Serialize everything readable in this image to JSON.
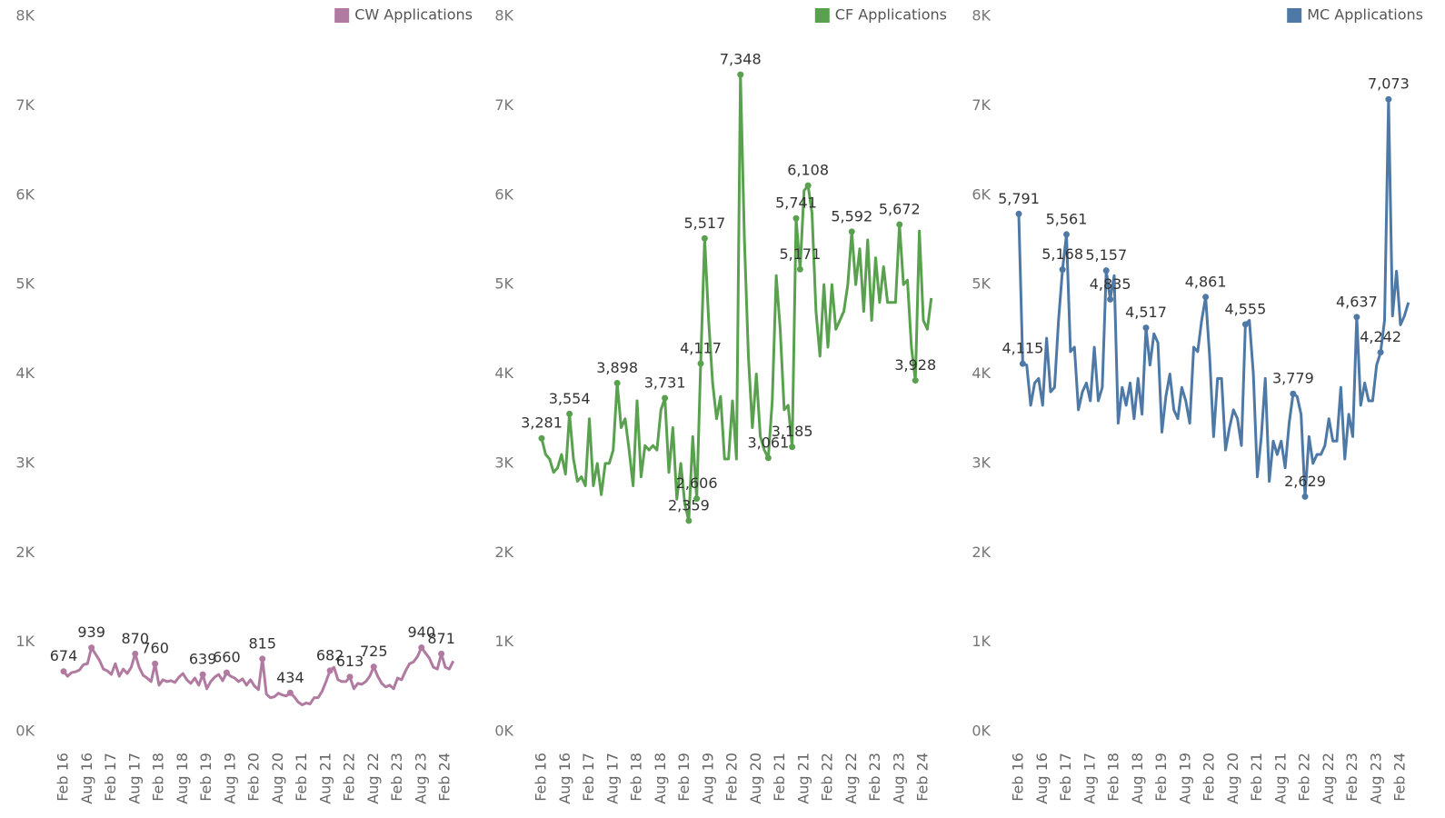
{
  "chart_data": [
    {
      "type": "line",
      "categories": [
        "Feb 16",
        null,
        null,
        null,
        null,
        null,
        "Aug 16",
        null,
        null,
        null,
        null,
        null,
        "Feb 17",
        null,
        null,
        null,
        null,
        null,
        "Aug 17",
        null,
        null,
        null,
        null,
        null,
        "Feb 18",
        null,
        null,
        null,
        null,
        null,
        "Aug 18",
        null,
        null,
        null,
        null,
        null,
        "Feb 19",
        null,
        null,
        null,
        null,
        null,
        "Aug 19",
        null,
        null,
        null,
        null,
        null,
        "Feb 20",
        null,
        null,
        null,
        null,
        null,
        "Aug 20",
        null,
        null,
        null,
        null,
        null,
        "Feb 21",
        null,
        null,
        null,
        null,
        null,
        "Aug 21",
        null,
        null,
        null,
        null,
        null,
        "Feb 22",
        null,
        null,
        null,
        null,
        null,
        "Aug 22",
        null,
        null,
        null,
        null,
        null,
        "Feb 23",
        null,
        null,
        null,
        null,
        null,
        "Aug 23",
        null,
        null,
        null,
        null,
        null,
        "Feb 24",
        null,
        null
      ],
      "series": [
        {
          "name": "CW Applications",
          "color": "#b07aa1",
          "values": [
            674,
            620,
            660,
            670,
            690,
            750,
            760,
            939,
            870,
            800,
            700,
            680,
            640,
            760,
            620,
            700,
            650,
            720,
            870,
            720,
            630,
            600,
            560,
            760,
            520,
            580,
            560,
            570,
            550,
            610,
            650,
            580,
            540,
            600,
            520,
            639,
            480,
            560,
            610,
            640,
            570,
            660,
            620,
            600,
            560,
            590,
            520,
            580,
            510,
            470,
            815,
            420,
            380,
            390,
            430,
            410,
            400,
            434,
            390,
            330,
            300,
            320,
            310,
            380,
            380,
            450,
            560,
            682,
            720,
            580,
            560,
            560,
            613,
            480,
            540,
            530,
            560,
            620,
            725,
            620,
            540,
            500,
            520,
            480,
            600,
            580,
            680,
            760,
            780,
            840,
            940,
            880,
            820,
            720,
            700,
            871,
            720,
            700,
            790
          ],
          "value_labels": [
            "674",
            null,
            null,
            null,
            null,
            null,
            null,
            "939",
            null,
            null,
            null,
            null,
            null,
            null,
            null,
            null,
            null,
            null,
            "870",
            null,
            null,
            null,
            null,
            "760",
            null,
            null,
            null,
            null,
            null,
            null,
            null,
            null,
            null,
            null,
            null,
            "639",
            null,
            null,
            null,
            null,
            null,
            "660",
            null,
            null,
            null,
            null,
            null,
            null,
            null,
            null,
            "815",
            null,
            null,
            null,
            null,
            null,
            null,
            "434",
            null,
            null,
            null,
            null,
            null,
            null,
            null,
            null,
            null,
            "682",
            null,
            null,
            null,
            null,
            "613",
            null,
            null,
            null,
            null,
            null,
            "725",
            null,
            null,
            null,
            null,
            null,
            null,
            null,
            null,
            null,
            null,
            null,
            "940",
            null,
            null,
            null,
            null,
            "871",
            null,
            null,
            null
          ]
        }
      ],
      "ylim": [
        0,
        8000
      ],
      "yticks": [
        {
          "value": 0,
          "label": "0K"
        },
        {
          "value": 1000,
          "label": "1K"
        },
        {
          "value": 2000,
          "label": "2K"
        },
        {
          "value": 3000,
          "label": "3K"
        },
        {
          "value": 4000,
          "label": "4K"
        },
        {
          "value": 5000,
          "label": "5K"
        },
        {
          "value": 6000,
          "label": "6K"
        },
        {
          "value": 7000,
          "label": "7K"
        },
        {
          "value": 8000,
          "label": "8K"
        }
      ],
      "legend": "top-right"
    },
    {
      "type": "line",
      "categories": [
        "Feb 16",
        null,
        null,
        null,
        null,
        null,
        "Aug 16",
        null,
        null,
        null,
        null,
        null,
        "Feb 17",
        null,
        null,
        null,
        null,
        null,
        "Aug 17",
        null,
        null,
        null,
        null,
        null,
        "Feb 18",
        null,
        null,
        null,
        null,
        null,
        "Aug 18",
        null,
        null,
        null,
        null,
        null,
        "Feb 19",
        null,
        null,
        null,
        null,
        null,
        "Aug 19",
        null,
        null,
        null,
        null,
        null,
        "Feb 20",
        null,
        null,
        null,
        null,
        null,
        "Aug 20",
        null,
        null,
        null,
        null,
        null,
        "Feb 21",
        null,
        null,
        null,
        null,
        null,
        "Aug 21",
        null,
        null,
        null,
        null,
        null,
        "Feb 22",
        null,
        null,
        null,
        null,
        null,
        "Aug 22",
        null,
        null,
        null,
        null,
        null,
        "Feb 23",
        null,
        null,
        null,
        null,
        null,
        "Aug 23",
        null,
        null,
        null,
        null,
        null,
        "Feb 24",
        null,
        null
      ],
      "series": [
        {
          "name": "CF Applications",
          "color": "#59a14f",
          "values": [
            3281,
            3100,
            3050,
            2900,
            2950,
            3100,
            2880,
            3554,
            3050,
            2800,
            2850,
            2750,
            3500,
            2750,
            3000,
            2650,
            3000,
            3000,
            3150,
            3898,
            3400,
            3500,
            3150,
            2750,
            3700,
            2850,
            3200,
            3150,
            3200,
            3150,
            3600,
            3731,
            2900,
            3400,
            2600,
            3000,
            2550,
            2359,
            3300,
            2606,
            4117,
            5517,
            4600,
            3900,
            3500,
            3750,
            3050,
            3050,
            3700,
            3050,
            7348,
            5500,
            4200,
            3400,
            4000,
            3300,
            3150,
            3061,
            3700,
            5100,
            4500,
            3600,
            3650,
            3185,
            5741,
            5171,
            6050,
            6108,
            5800,
            4700,
            4200,
            5000,
            4300,
            5000,
            4500,
            4600,
            4700,
            5000,
            5592,
            5000,
            5400,
            4700,
            5500,
            4600,
            5300,
            4800,
            5200,
            4800,
            4800,
            4800,
            5672,
            5000,
            5050,
            4300,
            3928,
            5600,
            4600,
            4500,
            4850
          ],
          "value_labels": [
            "3,281",
            null,
            null,
            null,
            null,
            null,
            null,
            "3,554",
            null,
            null,
            null,
            null,
            null,
            null,
            null,
            null,
            null,
            null,
            null,
            "3,898",
            null,
            null,
            null,
            null,
            null,
            null,
            null,
            null,
            null,
            null,
            null,
            "3,731",
            null,
            null,
            null,
            null,
            null,
            "2,359",
            null,
            "2,606",
            "4,117",
            "5,517",
            null,
            null,
            null,
            null,
            null,
            null,
            null,
            null,
            "7,348",
            null,
            null,
            null,
            null,
            null,
            null,
            "3,061",
            null,
            null,
            null,
            null,
            null,
            "3,185",
            "5,741",
            "5,171",
            null,
            "6,108",
            null,
            null,
            null,
            null,
            null,
            null,
            null,
            null,
            null,
            null,
            "5,592",
            null,
            null,
            null,
            null,
            null,
            null,
            null,
            null,
            null,
            null,
            null,
            "5,672",
            null,
            null,
            null,
            "3,928",
            null,
            null,
            null,
            null
          ]
        }
      ],
      "ylim": [
        0,
        8000
      ],
      "yticks": [
        {
          "value": 0,
          "label": "0K"
        },
        {
          "value": 1000,
          "label": "1K"
        },
        {
          "value": 2000,
          "label": "2K"
        },
        {
          "value": 3000,
          "label": "3K"
        },
        {
          "value": 4000,
          "label": "4K"
        },
        {
          "value": 5000,
          "label": "5K"
        },
        {
          "value": 6000,
          "label": "6K"
        },
        {
          "value": 7000,
          "label": "7K"
        },
        {
          "value": 8000,
          "label": "8K"
        }
      ],
      "legend": "top-right"
    },
    {
      "type": "line",
      "categories": [
        "Feb 16",
        null,
        null,
        null,
        null,
        null,
        "Aug 16",
        null,
        null,
        null,
        null,
        null,
        "Feb 17",
        null,
        null,
        null,
        null,
        null,
        "Aug 17",
        null,
        null,
        null,
        null,
        null,
        "Feb 18",
        null,
        null,
        null,
        null,
        null,
        "Aug 18",
        null,
        null,
        null,
        null,
        null,
        "Feb 19",
        null,
        null,
        null,
        null,
        null,
        "Aug 19",
        null,
        null,
        null,
        null,
        null,
        "Feb 20",
        null,
        null,
        null,
        null,
        null,
        "Aug 20",
        null,
        null,
        null,
        null,
        null,
        "Feb 21",
        null,
        null,
        null,
        null,
        null,
        "Aug 21",
        null,
        null,
        null,
        null,
        null,
        "Feb 22",
        null,
        null,
        null,
        null,
        null,
        "Aug 22",
        null,
        null,
        null,
        null,
        null,
        "Feb 23",
        null,
        null,
        null,
        null,
        null,
        "Aug 23",
        null,
        null,
        null,
        null,
        null,
        "Feb 24",
        null,
        null
      ],
      "series": [
        {
          "name": "MC Applications",
          "color": "#4e79a7",
          "values": [
            5791,
            4115,
            4100,
            3650,
            3900,
            3950,
            3650,
            4400,
            3800,
            3850,
            4600,
            5168,
            5561,
            4250,
            4300,
            3600,
            3800,
            3900,
            3700,
            4300,
            3700,
            3850,
            5157,
            4835,
            5100,
            3450,
            3850,
            3650,
            3900,
            3500,
            3950,
            3550,
            4517,
            4100,
            4450,
            4350,
            3350,
            3750,
            4000,
            3600,
            3500,
            3850,
            3700,
            3450,
            4300,
            4250,
            4600,
            4861,
            4200,
            3300,
            3950,
            3950,
            3150,
            3400,
            3600,
            3500,
            3200,
            4555,
            4600,
            4000,
            2850,
            3300,
            3950,
            2800,
            3250,
            3100,
            3250,
            2950,
            3450,
            3779,
            3750,
            3550,
            2629,
            3300,
            3000,
            3100,
            3100,
            3200,
            3500,
            3250,
            3250,
            3850,
            3050,
            3550,
            3300,
            4637,
            3650,
            3900,
            3700,
            3700,
            4100,
            4242,
            4600,
            7073,
            4650,
            5150,
            4550,
            4650,
            4800
          ],
          "value_labels": [
            "5,791",
            "4,115",
            null,
            null,
            null,
            null,
            null,
            null,
            null,
            null,
            null,
            "5,168",
            "5,561",
            null,
            null,
            null,
            null,
            null,
            null,
            null,
            null,
            null,
            "5,157",
            "4,835",
            null,
            null,
            null,
            null,
            null,
            null,
            null,
            null,
            "4,517",
            null,
            null,
            null,
            null,
            null,
            null,
            null,
            null,
            null,
            null,
            null,
            null,
            null,
            null,
            "4,861",
            null,
            null,
            null,
            null,
            null,
            null,
            null,
            null,
            null,
            "4,555",
            null,
            null,
            null,
            null,
            null,
            null,
            null,
            null,
            null,
            null,
            null,
            "3,779",
            null,
            null,
            "2,629",
            null,
            null,
            null,
            null,
            null,
            null,
            null,
            null,
            null,
            null,
            null,
            null,
            "4,637",
            null,
            null,
            null,
            null,
            null,
            "4,242",
            null,
            "7,073",
            null,
            null,
            null,
            null,
            null
          ]
        }
      ],
      "ylim": [
        0,
        8000
      ],
      "yticks": [
        {
          "value": 0,
          "label": "0K"
        },
        {
          "value": 1000,
          "label": "1K"
        },
        {
          "value": 2000,
          "label": "2K"
        },
        {
          "value": 3000,
          "label": "3K"
        },
        {
          "value": 4000,
          "label": "4K"
        },
        {
          "value": 5000,
          "label": "5K"
        },
        {
          "value": 6000,
          "label": "6K"
        },
        {
          "value": 7000,
          "label": "7K"
        },
        {
          "value": 8000,
          "label": "8K"
        }
      ],
      "legend": "top-right"
    }
  ]
}
